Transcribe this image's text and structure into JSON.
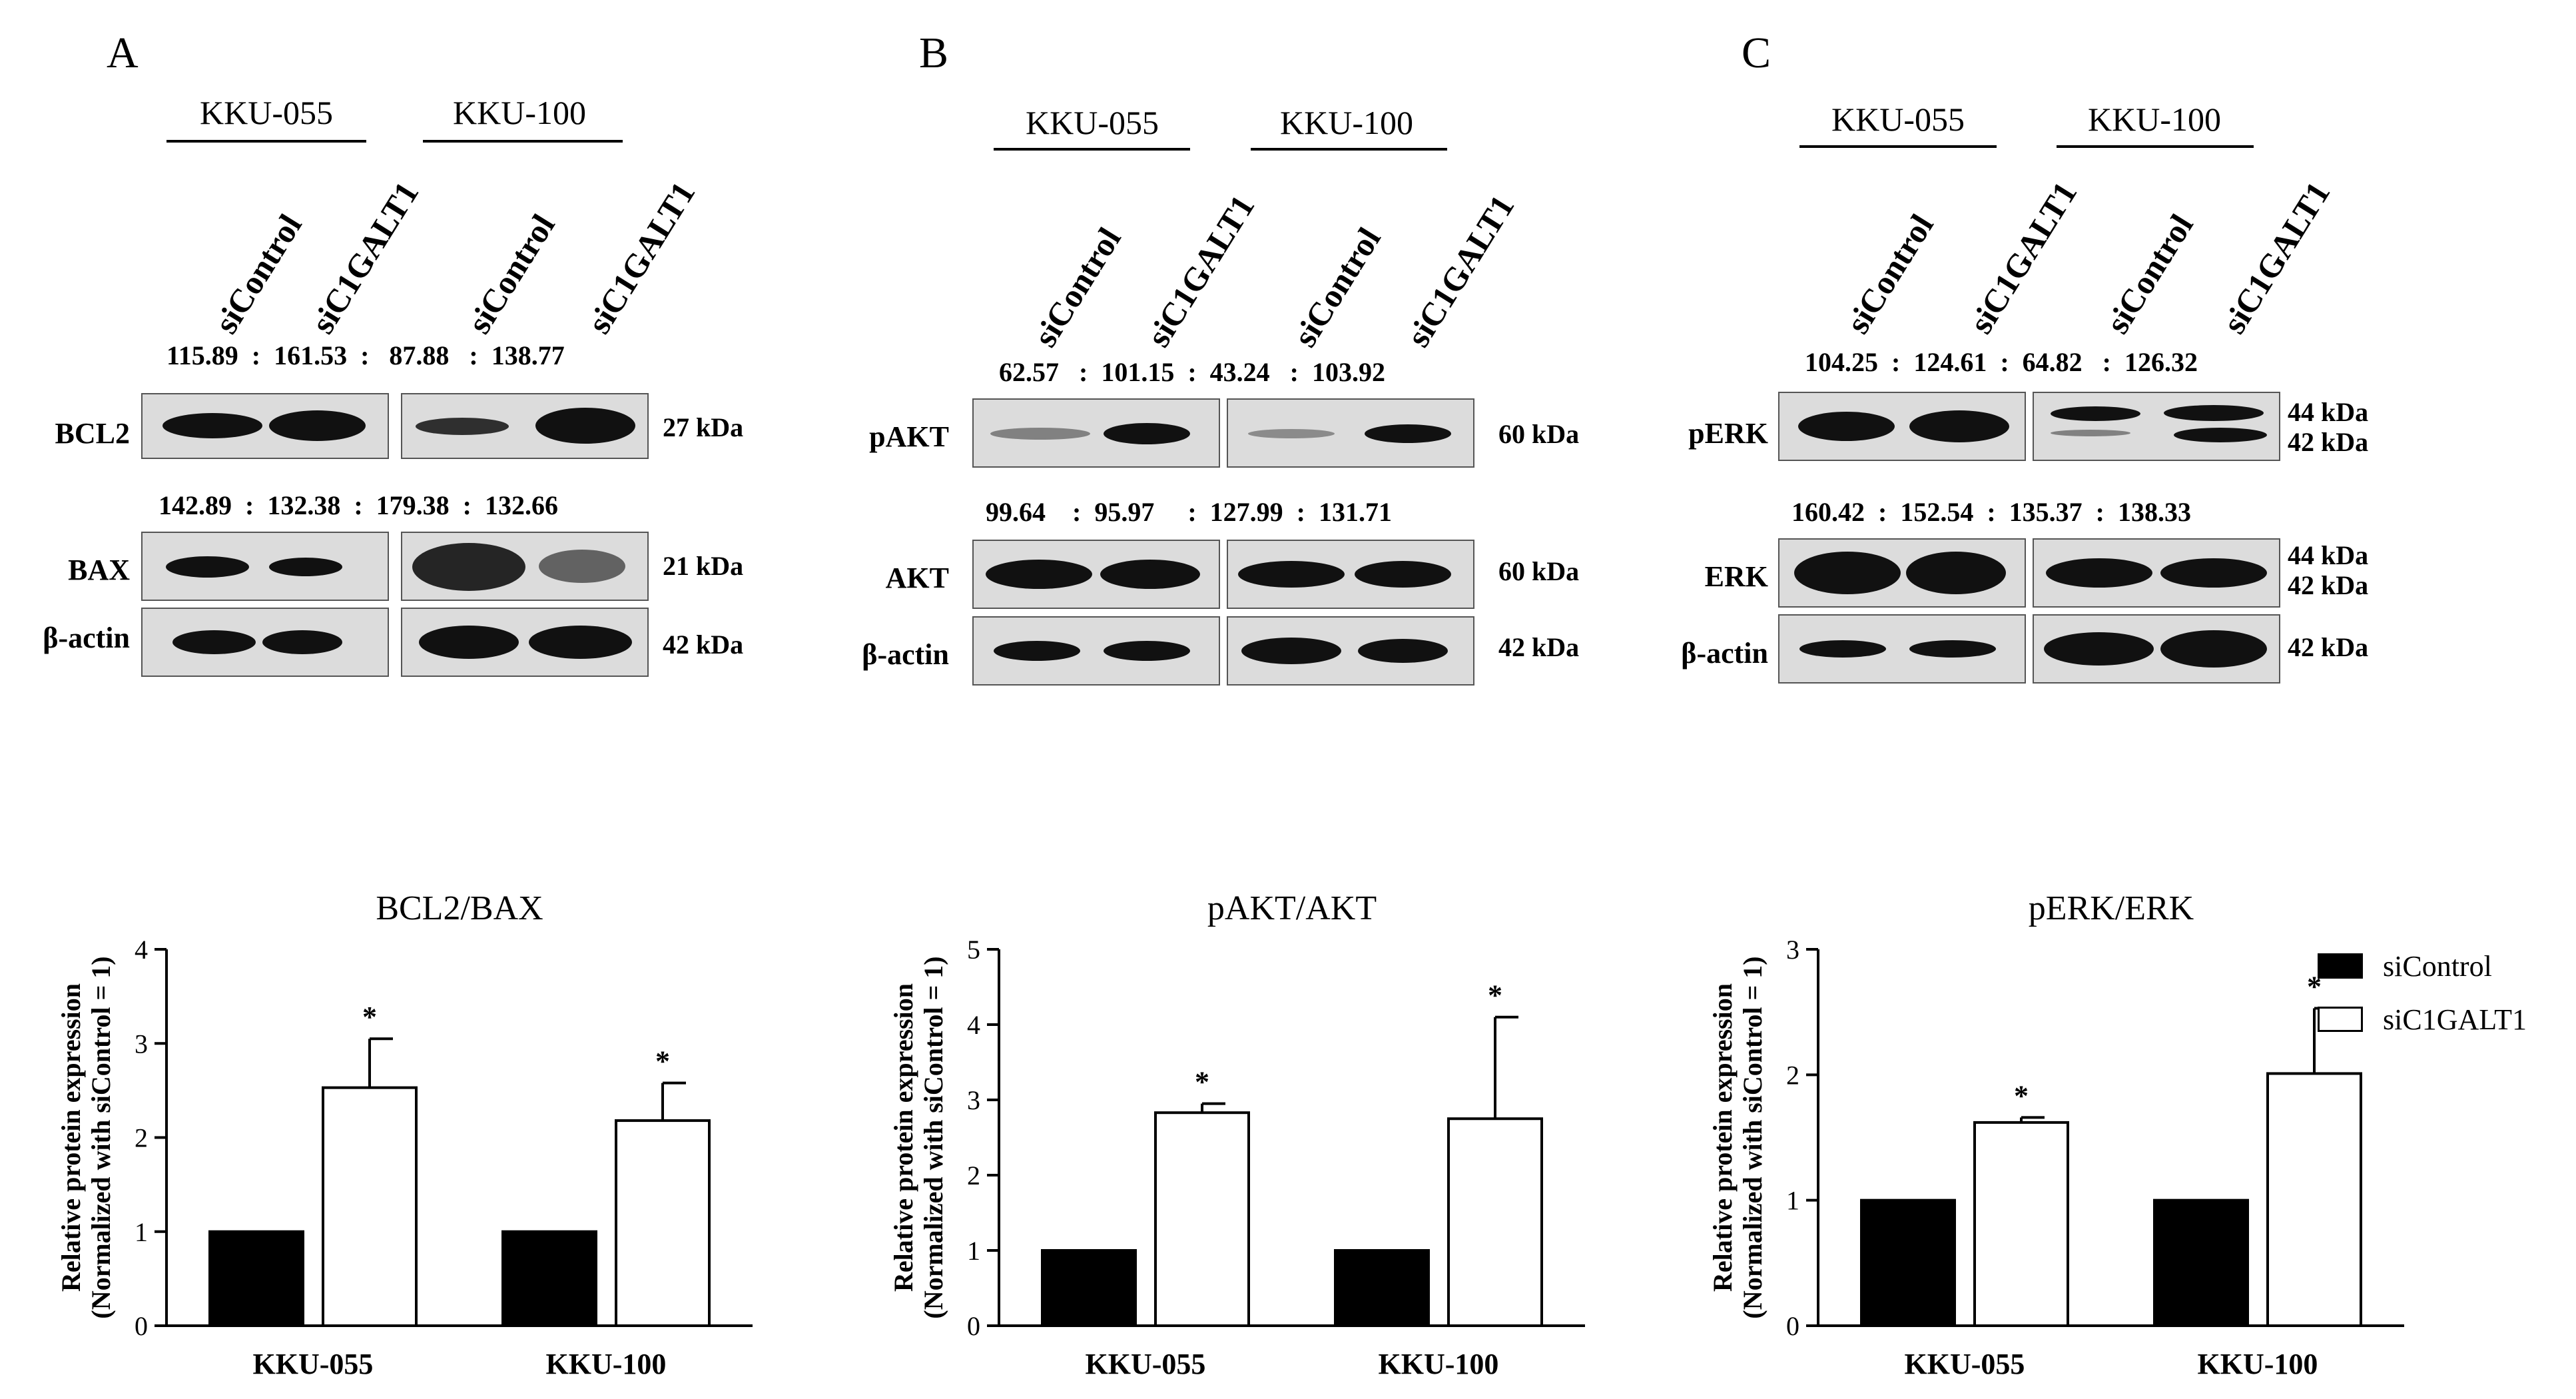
{
  "panels": [
    {
      "label": "A",
      "cells": [
        "KKU-055",
        "KKU-100"
      ],
      "lanes": [
        "siControl",
        "siC1GALT1",
        "siControl",
        "siC1GALT1"
      ],
      "rows": [
        {
          "protein": "BCL2",
          "kda": "27 kDa",
          "quant": "115.89  :  161.53  :   87.88   :  138.77"
        },
        {
          "protein": "BAX",
          "kda": "21 kDa",
          "quant": "142.89  :  132.38  :  179.38  :  132.66"
        },
        {
          "protein": "β-actin",
          "kda": "42 kDa",
          "quant": ""
        }
      ]
    },
    {
      "label": "B",
      "cells": [
        "KKU-055",
        "KKU-100"
      ],
      "lanes": [
        "siControl",
        "siC1GALT1",
        "siControl",
        "siC1GALT1"
      ],
      "rows": [
        {
          "protein": "pAKT",
          "kda": "60 kDa",
          "quant": "62.57   :  101.15  :  43.24   :  103.92"
        },
        {
          "protein": "AKT",
          "kda": "60 kDa",
          "quant": "99.64    :  95.97     :  127.99  :  131.71"
        },
        {
          "protein": "β-actin",
          "kda": "42 kDa",
          "quant": ""
        }
      ]
    },
    {
      "label": "C",
      "cells": [
        "KKU-055",
        "KKU-100"
      ],
      "lanes": [
        "siControl",
        "siC1GALT1",
        "siControl",
        "siC1GALT1"
      ],
      "rows": [
        {
          "protein": "pERK",
          "kda": "44 kDa",
          "kda2": "42 kDa",
          "quant": "104.25  :  124.61  :  64.82   :  126.32"
        },
        {
          "protein": "ERK",
          "kda": "44 kDa",
          "kda2": "42 kDa",
          "quant": "160.42  :  152.54  :  135.37  :  138.33"
        },
        {
          "protein": "β-actin",
          "kda": "42 kDa",
          "quant": ""
        }
      ]
    }
  ],
  "legend": [
    {
      "label": "siControl",
      "color": "#000000"
    },
    {
      "label": "siC1GALT1",
      "color": "#ffffff"
    }
  ],
  "chart_data": [
    {
      "type": "bar",
      "title": "BCL2/BAX",
      "ylabel": "Relative protein expression",
      "ylabel2": "(Normalized with siControl = 1)",
      "categories": [
        "KKU-055",
        "KKU-100"
      ],
      "ylim": [
        0,
        4
      ],
      "yticks": [
        0,
        1,
        2,
        3,
        4
      ],
      "series": [
        {
          "name": "siControl",
          "values": [
            1.0,
            1.0
          ],
          "errors": [
            0,
            0
          ],
          "color": "#000000"
        },
        {
          "name": "siC1GALT1",
          "values": [
            2.53,
            2.18
          ],
          "errors": [
            0.52,
            0.4
          ],
          "color": "#ffffff"
        }
      ],
      "annotations": [
        "*",
        "*"
      ]
    },
    {
      "type": "bar",
      "title": "pAKT/AKT",
      "ylabel": "Relative protein expression",
      "ylabel2": "(Normalized with siControl = 1)",
      "categories": [
        "KKU-055",
        "KKU-100"
      ],
      "ylim": [
        0,
        5
      ],
      "yticks": [
        0,
        1,
        2,
        3,
        4,
        5
      ],
      "series": [
        {
          "name": "siControl",
          "values": [
            1.0,
            1.0
          ],
          "errors": [
            0,
            0
          ],
          "color": "#000000"
        },
        {
          "name": "siC1GALT1",
          "values": [
            2.83,
            2.75
          ],
          "errors": [
            0.12,
            1.35
          ],
          "color": "#ffffff"
        }
      ],
      "annotations": [
        "*",
        "*"
      ]
    },
    {
      "type": "bar",
      "title": "pERK/ERK",
      "ylabel": "Relative protein expression",
      "ylabel2": "(Normalized with siControl = 1)",
      "categories": [
        "KKU-055",
        "KKU-100"
      ],
      "ylim": [
        0,
        3
      ],
      "yticks": [
        0,
        1,
        2,
        3
      ],
      "series": [
        {
          "name": "siControl",
          "values": [
            1.0,
            1.0
          ],
          "errors": [
            0,
            0
          ],
          "color": "#000000"
        },
        {
          "name": "siC1GALT1",
          "values": [
            1.62,
            2.01
          ],
          "errors": [
            0.04,
            0.52
          ],
          "color": "#ffffff"
        }
      ],
      "annotations": [
        "*",
        "*"
      ]
    }
  ]
}
